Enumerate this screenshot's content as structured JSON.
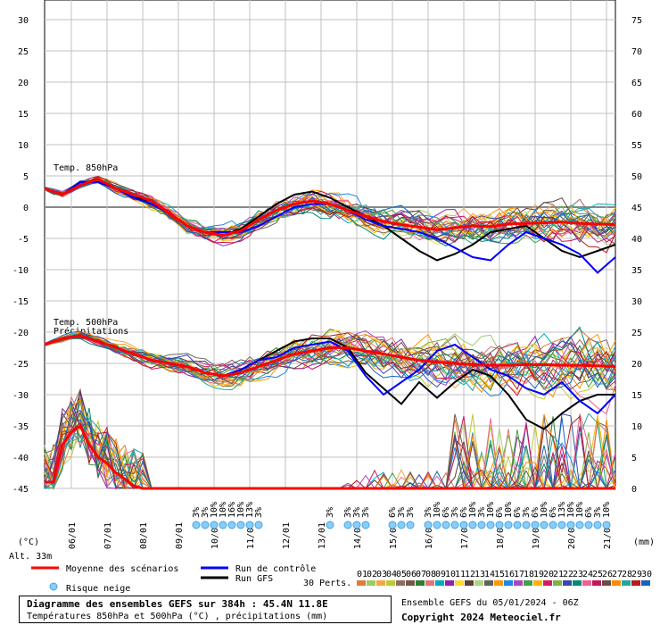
{
  "chart_data": {
    "type": "line",
    "title": "Diagramme des ensembles GEFS sur 384h : 45.4N 11.8E",
    "subtitle": "Températures 850hPa et 500hPa (°C) , précipitations (mm)",
    "left_axis_unit": "(°C)",
    "right_axis_unit": "(mm)",
    "altitude": "Alt. 33m",
    "left_ticks": [
      30,
      25,
      20,
      15,
      10,
      5,
      0,
      -5,
      -10,
      -15,
      -20,
      -25,
      -30,
      -35,
      -40,
      -45
    ],
    "right_ticks": [
      75,
      70,
      65,
      60,
      55,
      50,
      45,
      40,
      35,
      30,
      25,
      20,
      15,
      10,
      5,
      0
    ],
    "ylim_temp": [
      -45,
      30
    ],
    "ylim_precip": [
      0,
      75
    ],
    "x_hours": [
      0,
      384
    ],
    "date_labels": [
      "06/01",
      "07/01",
      "08/01",
      "09/01",
      "10/01",
      "11/01",
      "12/01",
      "13/01",
      "14/01",
      "15/01",
      "16/01",
      "17/01",
      "18/01",
      "19/01",
      "20/01",
      "21/01"
    ],
    "panel_labels": {
      "t850": "Temp. 850hPa",
      "t500": "Temp. 500hPa",
      "precip": "Précipitations"
    },
    "t850_mean": [
      [
        0,
        3
      ],
      [
        12,
        2
      ],
      [
        24,
        3.5
      ],
      [
        36,
        4.5
      ],
      [
        48,
        3
      ],
      [
        60,
        2
      ],
      [
        72,
        1
      ],
      [
        84,
        -1
      ],
      [
        96,
        -3
      ],
      [
        108,
        -4
      ],
      [
        120,
        -4.5
      ],
      [
        132,
        -3.8
      ],
      [
        144,
        -2
      ],
      [
        156,
        -0.5
      ],
      [
        168,
        0.5
      ],
      [
        180,
        1
      ],
      [
        192,
        0.5
      ],
      [
        204,
        -0.5
      ],
      [
        216,
        -1.5
      ],
      [
        228,
        -2.3
      ],
      [
        240,
        -2.8
      ],
      [
        252,
        -3.2
      ],
      [
        264,
        -3.6
      ],
      [
        276,
        -3.3
      ],
      [
        288,
        -3
      ],
      [
        300,
        -3.1
      ],
      [
        312,
        -2.7
      ],
      [
        324,
        -2.6
      ],
      [
        336,
        -2.5
      ],
      [
        348,
        -2.4
      ],
      [
        360,
        -2.6
      ],
      [
        372,
        -2.7
      ],
      [
        384,
        -2.8
      ]
    ],
    "t850_control": [
      [
        0,
        3
      ],
      [
        12,
        2
      ],
      [
        24,
        4
      ],
      [
        36,
        4
      ],
      [
        48,
        3
      ],
      [
        60,
        1.5
      ],
      [
        72,
        0.5
      ],
      [
        84,
        -1
      ],
      [
        96,
        -3
      ],
      [
        108,
        -4
      ],
      [
        120,
        -4
      ],
      [
        132,
        -4
      ],
      [
        144,
        -3
      ],
      [
        156,
        -1.5
      ],
      [
        168,
        0
      ],
      [
        180,
        0.5
      ],
      [
        192,
        0.5
      ],
      [
        204,
        -0.5
      ],
      [
        216,
        -2
      ],
      [
        228,
        -3
      ],
      [
        240,
        -3.5
      ],
      [
        252,
        -4
      ],
      [
        264,
        -5
      ],
      [
        276,
        -6.5
      ],
      [
        288,
        -8
      ],
      [
        300,
        -8.5
      ],
      [
        312,
        -6
      ],
      [
        324,
        -4
      ],
      [
        336,
        -5
      ],
      [
        348,
        -6
      ],
      [
        360,
        -7.5
      ],
      [
        372,
        -10.5
      ],
      [
        384,
        -8
      ]
    ],
    "t850_gfs": [
      [
        0,
        3
      ],
      [
        12,
        2
      ],
      [
        24,
        4
      ],
      [
        36,
        4
      ],
      [
        48,
        3
      ],
      [
        60,
        1.5
      ],
      [
        72,
        1
      ],
      [
        84,
        -1
      ],
      [
        96,
        -3
      ],
      [
        108,
        -4
      ],
      [
        120,
        -4.5
      ],
      [
        132,
        -3.5
      ],
      [
        144,
        -1.5
      ],
      [
        156,
        0.5
      ],
      [
        168,
        2
      ],
      [
        180,
        2.5
      ],
      [
        192,
        1.5
      ],
      [
        204,
        0
      ],
      [
        216,
        -1.5
      ],
      [
        228,
        -3
      ],
      [
        240,
        -5
      ],
      [
        252,
        -7
      ],
      [
        264,
        -8.5
      ],
      [
        276,
        -7.5
      ],
      [
        288,
        -6
      ],
      [
        300,
        -4
      ],
      [
        312,
        -3.5
      ],
      [
        324,
        -3
      ],
      [
        336,
        -5
      ],
      [
        348,
        -7
      ],
      [
        360,
        -8
      ],
      [
        372,
        -7
      ],
      [
        384,
        -6
      ]
    ],
    "t500_mean": [
      [
        0,
        -22
      ],
      [
        12,
        -21
      ],
      [
        24,
        -20.5
      ],
      [
        36,
        -21.5
      ],
      [
        48,
        -22.5
      ],
      [
        60,
        -23.5
      ],
      [
        72,
        -24.5
      ],
      [
        84,
        -25
      ],
      [
        96,
        -25.5
      ],
      [
        108,
        -26.5
      ],
      [
        120,
        -27
      ],
      [
        132,
        -26.5
      ],
      [
        144,
        -25.5
      ],
      [
        156,
        -24.5
      ],
      [
        168,
        -23.5
      ],
      [
        180,
        -23
      ],
      [
        192,
        -22.5
      ],
      [
        204,
        -22.5
      ],
      [
        216,
        -23
      ],
      [
        228,
        -23.5
      ],
      [
        240,
        -24
      ],
      [
        252,
        -24.5
      ],
      [
        264,
        -24.8
      ],
      [
        276,
        -25
      ],
      [
        288,
        -25.2
      ],
      [
        300,
        -25.3
      ],
      [
        312,
        -25.3
      ],
      [
        324,
        -25.2
      ],
      [
        336,
        -25.2
      ],
      [
        348,
        -25.3
      ],
      [
        360,
        -25.3
      ],
      [
        372,
        -25.4
      ],
      [
        384,
        -25.5
      ]
    ],
    "t500_control": [
      [
        0,
        -22
      ],
      [
        12,
        -21
      ],
      [
        24,
        -20.5
      ],
      [
        36,
        -21.5
      ],
      [
        48,
        -22.5
      ],
      [
        60,
        -23.5
      ],
      [
        72,
        -24.5
      ],
      [
        84,
        -25
      ],
      [
        96,
        -25.5
      ],
      [
        108,
        -26.5
      ],
      [
        120,
        -27
      ],
      [
        132,
        -26
      ],
      [
        144,
        -24.5
      ],
      [
        156,
        -24
      ],
      [
        168,
        -22.5
      ],
      [
        180,
        -22
      ],
      [
        192,
        -21.5
      ],
      [
        204,
        -23
      ],
      [
        216,
        -27
      ],
      [
        228,
        -30
      ],
      [
        240,
        -28
      ],
      [
        252,
        -26
      ],
      [
        264,
        -23
      ],
      [
        276,
        -22
      ],
      [
        288,
        -24
      ],
      [
        300,
        -26
      ],
      [
        312,
        -27
      ],
      [
        324,
        -29
      ],
      [
        336,
        -30
      ],
      [
        348,
        -28
      ],
      [
        360,
        -31
      ],
      [
        372,
        -33
      ],
      [
        384,
        -30
      ]
    ],
    "t500_gfs": [
      [
        0,
        -22
      ],
      [
        12,
        -21
      ],
      [
        24,
        -20.5
      ],
      [
        36,
        -21.5
      ],
      [
        48,
        -22.5
      ],
      [
        60,
        -23.5
      ],
      [
        72,
        -24.5
      ],
      [
        84,
        -25
      ],
      [
        96,
        -25.5
      ],
      [
        108,
        -26.5
      ],
      [
        120,
        -27
      ],
      [
        132,
        -26
      ],
      [
        144,
        -24.5
      ],
      [
        156,
        -23
      ],
      [
        168,
        -21.5
      ],
      [
        180,
        -21
      ],
      [
        192,
        -21
      ],
      [
        204,
        -22.5
      ],
      [
        216,
        -26.5
      ],
      [
        228,
        -29
      ],
      [
        240,
        -31.5
      ],
      [
        252,
        -28
      ],
      [
        264,
        -30.5
      ],
      [
        276,
        -28
      ],
      [
        288,
        -26
      ],
      [
        300,
        -27
      ],
      [
        312,
        -30
      ],
      [
        324,
        -34
      ],
      [
        336,
        -35.5
      ],
      [
        348,
        -33
      ],
      [
        360,
        -31
      ],
      [
        372,
        -30
      ],
      [
        384,
        -30
      ]
    ],
    "precip_mean": [
      [
        0,
        1
      ],
      [
        6,
        1
      ],
      [
        12,
        7
      ],
      [
        18,
        9
      ],
      [
        24,
        10
      ],
      [
        30,
        7
      ],
      [
        36,
        5
      ],
      [
        42,
        4
      ],
      [
        48,
        2.5
      ],
      [
        54,
        1.5
      ],
      [
        60,
        0.4
      ],
      [
        66,
        0
      ],
      [
        384,
        0
      ]
    ],
    "snow_risk_labels": [
      "3%",
      "3%",
      "10%",
      "10%",
      "16%",
      "10%",
      "13%",
      "3%",
      "3%",
      "3%",
      "3%",
      "3%",
      "6%",
      "3%",
      "3%",
      "3%",
      "10%",
      "6%",
      "3%",
      "6%",
      "10%",
      "3%",
      "10%",
      "6%",
      "10%",
      "6%",
      "3%",
      "6%",
      "10%",
      "6%",
      "13%",
      "10%",
      "10%",
      "6%",
      "3%",
      "10%"
    ],
    "legend": {
      "mean": "Moyenne des scénarios",
      "control": "Run de contrôle",
      "gfs": "Run GFS",
      "snow": "Risque neige",
      "perts": "30 Perts.",
      "pert_labels": [
        "01",
        "02",
        "03",
        "04",
        "05",
        "06",
        "07",
        "08",
        "09",
        "10",
        "11",
        "12",
        "13",
        "14",
        "15",
        "16",
        "17",
        "18",
        "19",
        "20",
        "21",
        "22",
        "23",
        "24",
        "25",
        "26",
        "27",
        "28",
        "29",
        "30"
      ]
    },
    "colors": {
      "mean": "#ff0000",
      "control": "#0000ff",
      "gfs": "#000000",
      "snow": "#87cefa",
      "grid": "#c0c0c0",
      "perts": [
        "#e07b39",
        "#9ccc65",
        "#f4a742",
        "#c0ca33",
        "#8d6e63",
        "#795548",
        "#2e7d32",
        "#e57373",
        "#00acc1",
        "#8e24aa",
        "#fdd835",
        "#5d4037",
        "#aed581",
        "#616161",
        "#ff9800",
        "#1e88e5",
        "#ab47bc",
        "#43a047",
        "#ffb300",
        "#d81b60",
        "#7cb342",
        "#3949ab",
        "#00897b",
        "#f06292",
        "#c2185b",
        "#6d4c41",
        "#fb8c00",
        "#26a69a",
        "#b71c1c",
        "#1565c0"
      ]
    }
  },
  "footer": {
    "title": "Diagramme des ensembles GEFS sur 384h : 45.4N 11.8E",
    "subtitle": "Températures 850hPa et 500hPa (°C) , précipitations (mm)",
    "run_info": "Ensemble GEFS du 05/01/2024 - 06Z",
    "copyright": "Copyright 2024 Meteociel.fr"
  }
}
